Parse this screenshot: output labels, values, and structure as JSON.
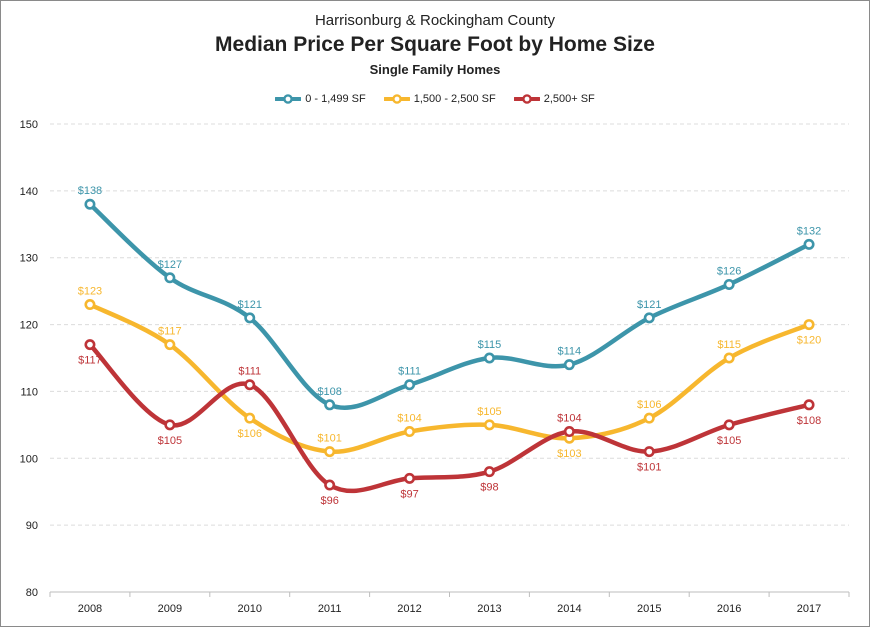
{
  "chart_data": {
    "type": "line",
    "supertitle": "Harrisonburg & Rockingham County",
    "title": "Median Price Per Square Foot by Home Size",
    "subtitle": "Single Family Homes",
    "categories": [
      "2008",
      "2009",
      "2010",
      "2011",
      "2012",
      "2013",
      "2014",
      "2015",
      "2016",
      "2017"
    ],
    "ylim": [
      80,
      150
    ],
    "yticks": [
      80,
      90,
      100,
      110,
      120,
      130,
      140,
      150
    ],
    "grid": true,
    "legend_position": "top",
    "series": [
      {
        "name": "0 - 1,499 SF",
        "color": "#3D95AA",
        "values": [
          138,
          127,
          121,
          108,
          111,
          115,
          114,
          121,
          126,
          132
        ],
        "labels": [
          "$138",
          "$127",
          "$121",
          "$108",
          "$111",
          "$115",
          "$114",
          "$121",
          "$126",
          "$132"
        ],
        "label_side": [
          "above",
          "above",
          "above",
          "above",
          "above",
          "above",
          "above",
          "above",
          "above",
          "above"
        ]
      },
      {
        "name": "1,500 - 2,500 SF",
        "color": "#F7B72E",
        "values": [
          123,
          117,
          106,
          101,
          104,
          105,
          103,
          106,
          115,
          120
        ],
        "labels": [
          "$123",
          "$117",
          "$106",
          "$101",
          "$104",
          "$105",
          "$103",
          "$106",
          "$115",
          "$120"
        ],
        "label_side": [
          "above",
          "above",
          "below",
          "above",
          "above",
          "above",
          "below",
          "above",
          "above",
          "below"
        ]
      },
      {
        "name": "2,500+ SF",
        "color": "#BE3438",
        "values": [
          117,
          105,
          111,
          96,
          97,
          98,
          104,
          101,
          105,
          108
        ],
        "labels": [
          "$117",
          "$105",
          "$111",
          "$96",
          "$97",
          "$98",
          "$104",
          "$101",
          "$105",
          "$108"
        ],
        "label_side": [
          "below",
          "below",
          "above",
          "below",
          "below",
          "below",
          "above",
          "below",
          "below",
          "below"
        ]
      }
    ]
  }
}
